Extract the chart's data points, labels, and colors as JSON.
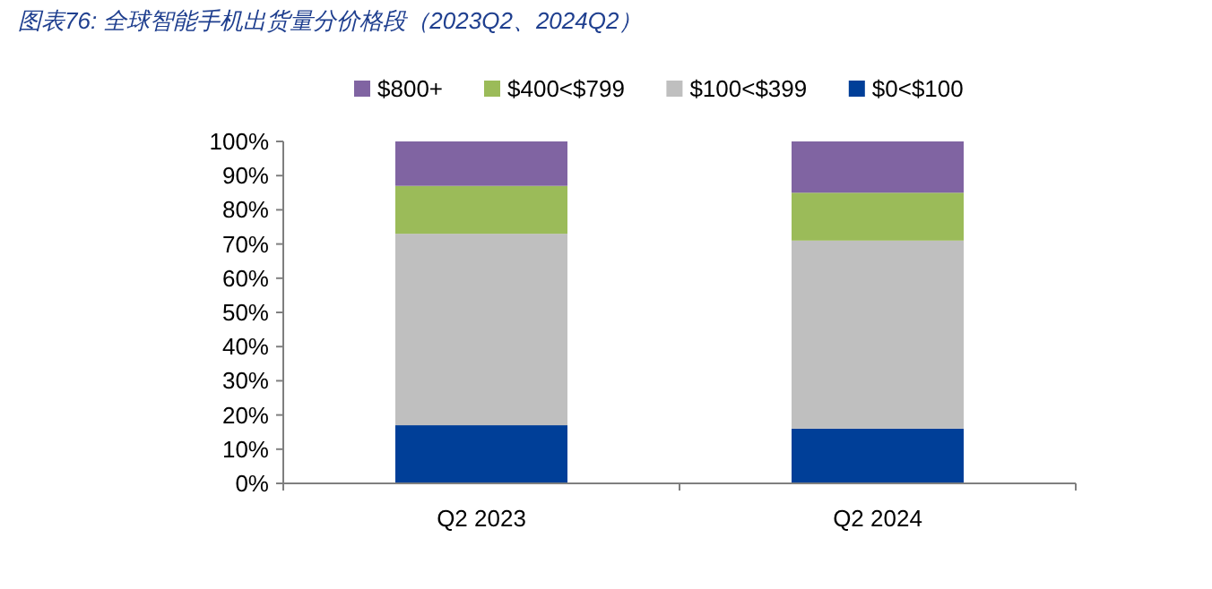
{
  "chart_data": {
    "type": "bar",
    "stacked": true,
    "title": "图表76: 全球智能手机出货量分价格段（2023Q2、2024Q2）",
    "categories": [
      "Q2 2023",
      "Q2 2024"
    ],
    "series": [
      {
        "name": "$0<$100",
        "color": "#003f98",
        "values": [
          17,
          16
        ]
      },
      {
        "name": "$100<$399",
        "color": "#bfbfbf",
        "values": [
          56,
          55
        ]
      },
      {
        "name": "$400<$799",
        "color": "#9bbb59",
        "values": [
          14,
          14
        ]
      },
      {
        "name": "$800+",
        "color": "#8064a2",
        "values": [
          13,
          15
        ]
      }
    ],
    "ylim": [
      0,
      100
    ],
    "yticks": [
      {
        "value": 0,
        "label": "0%"
      },
      {
        "value": 10,
        "label": "10%"
      },
      {
        "value": 20,
        "label": "20%"
      },
      {
        "value": 30,
        "label": "30%"
      },
      {
        "value": 40,
        "label": "40%"
      },
      {
        "value": 50,
        "label": "50%"
      },
      {
        "value": 60,
        "label": "60%"
      },
      {
        "value": 70,
        "label": "70%"
      },
      {
        "value": 80,
        "label": "80%"
      },
      {
        "value": 90,
        "label": "90%"
      },
      {
        "value": 100,
        "label": "100%"
      }
    ],
    "grid": false,
    "legend": "top"
  }
}
